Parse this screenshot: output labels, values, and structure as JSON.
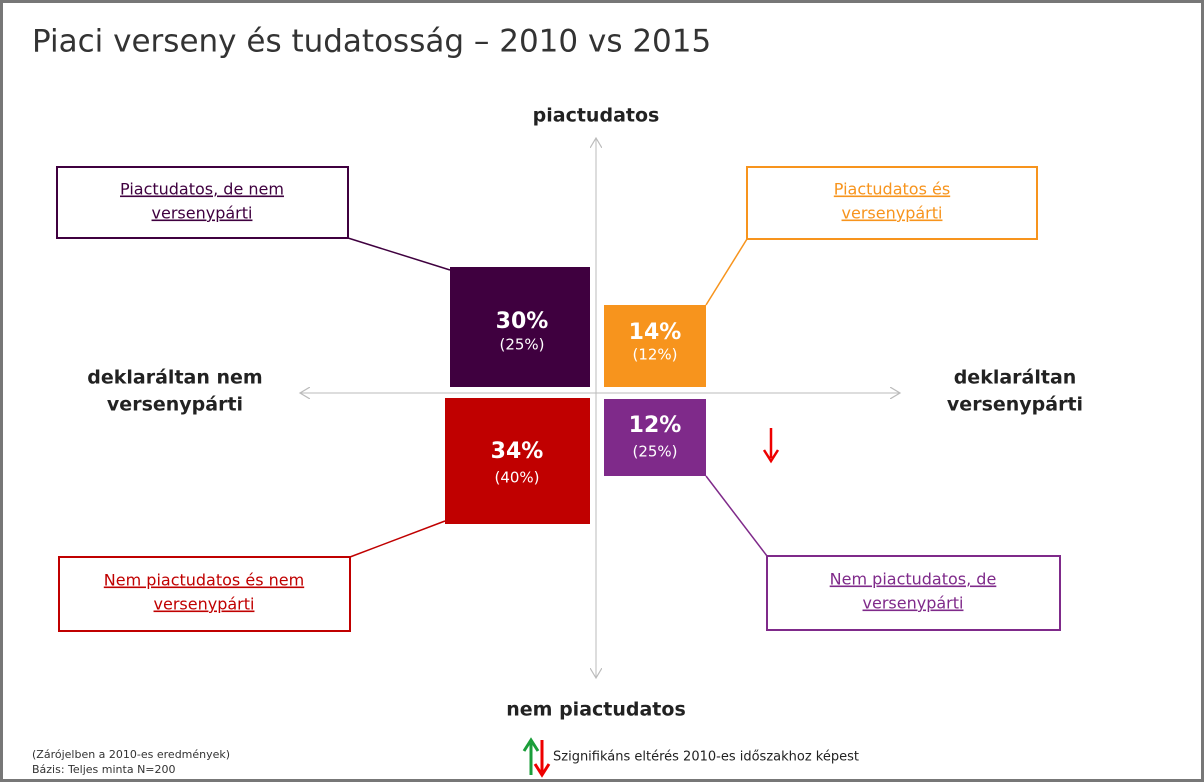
{
  "header": {
    "title": "Piaci verseny és tudatosság – 2010 vs 2015"
  },
  "axes": {
    "top": "piactudatos",
    "bottom": "nem piactudatos",
    "left": [
      "deklaráltan nem",
      "versenypárti"
    ],
    "right": [
      "deklaráltan",
      "versenypárti"
    ]
  },
  "quadrants": [
    {
      "label": [
        "Piactudatos, de nem",
        "versenypárti"
      ],
      "value": "30%",
      "previous": "(25%)"
    },
    {
      "label": [
        "Piactudatos és",
        "versenypárti"
      ],
      "value": "14%",
      "previous": "(12%)"
    },
    {
      "label": [
        "Nem piactudatos és nem",
        "versenypárti"
      ],
      "value": "34%",
      "previous": "(40%)"
    },
    {
      "label": [
        "Nem piactudatos, de",
        "versenypárti"
      ],
      "value": "12%",
      "previous": "(25%)"
    }
  ],
  "footnotes": [
    "(Zárójelben a 2010-es eredmények)",
    "Bázis: Teljes minta N=200"
  ],
  "legend": "Szignifikáns eltérés 2010-es időszakhoz képest"
}
